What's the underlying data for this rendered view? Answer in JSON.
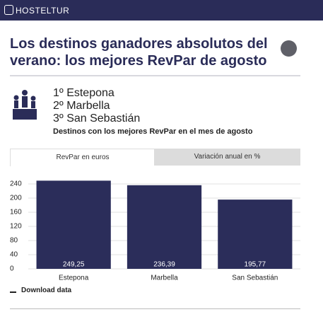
{
  "header": {
    "brand": "HOSTELTUR"
  },
  "article": {
    "title": "Los destinos ganadores absolutos del verano: los mejores RevPar de agosto",
    "ranking": [
      "1º Estepona",
      "2º Marbella",
      "3º San Sebastián"
    ],
    "tabs": [
      "RevPar en euros",
      "Variación anual en %"
    ],
    "download": "Download data"
  },
  "chart_data": {
    "type": "bar",
    "subtitle": "Destinos con los mejores RevPar en el mes de agosto",
    "categories": [
      "Estepona",
      "Marbella",
      "San Sebastián"
    ],
    "values": [
      249.25,
      236.39,
      195.77
    ],
    "value_labels": [
      "249,25",
      "236,39",
      "195,77"
    ],
    "color": "#2b2d5a",
    "ylim": [
      0,
      250
    ],
    "yticks": [
      0,
      40,
      80,
      120,
      160,
      200,
      240
    ],
    "grid": true
  }
}
